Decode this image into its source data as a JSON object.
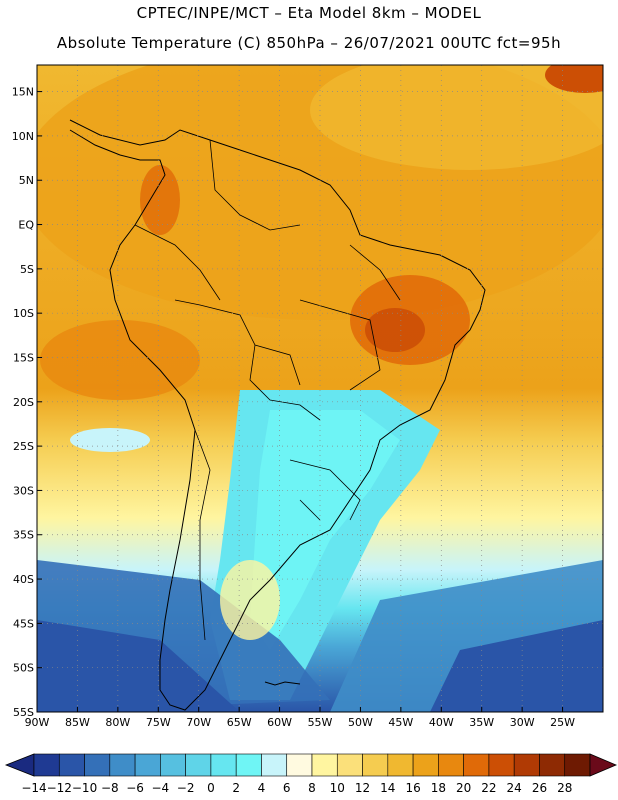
{
  "header": {
    "line1": "CPTEC/INPE/MCT –  Eta Model 8km – MODEL",
    "line2": "Absolute Temperature (C) 850hPa – 26/07/2021 00UTC fct=95h"
  },
  "map": {
    "lat_labels": [
      "15N",
      "10N",
      "5N",
      "EQ",
      "5S",
      "10S",
      "15S",
      "20S",
      "25S",
      "30S",
      "35S",
      "40S",
      "45S",
      "50S",
      "55S"
    ],
    "lon_labels": [
      "90W",
      "85W",
      "80W",
      "75W",
      "70W",
      "65W",
      "60W",
      "55W",
      "50W",
      "45W",
      "40W",
      "35W",
      "30W",
      "25W"
    ]
  },
  "colorbar": {
    "labels": [
      "-14",
      "-12",
      "-10",
      "-8",
      "-6",
      "-4",
      "-2",
      "0",
      "2",
      "4",
      "6",
      "8",
      "10",
      "12",
      "14",
      "16",
      "18",
      "20",
      "22",
      "24",
      "26",
      "28"
    ],
    "colors": [
      "#1f3a93",
      "#2a55a8",
      "#3470b8",
      "#3f8dc8",
      "#4aa6d6",
      "#56c0e0",
      "#5fd4e8",
      "#66e6f0",
      "#6ff5f5",
      "#c8f4fa",
      "#fffae0",
      "#fff5a0",
      "#fbe07a",
      "#f5cc50",
      "#f0b830",
      "#eca21a",
      "#e8880f",
      "#e06a08",
      "#cc4f05",
      "#b03a04",
      "#8e2a03",
      "#6e1a02"
    ],
    "under_color": "#1a2a80",
    "over_color": "#6a0a1a"
  }
}
